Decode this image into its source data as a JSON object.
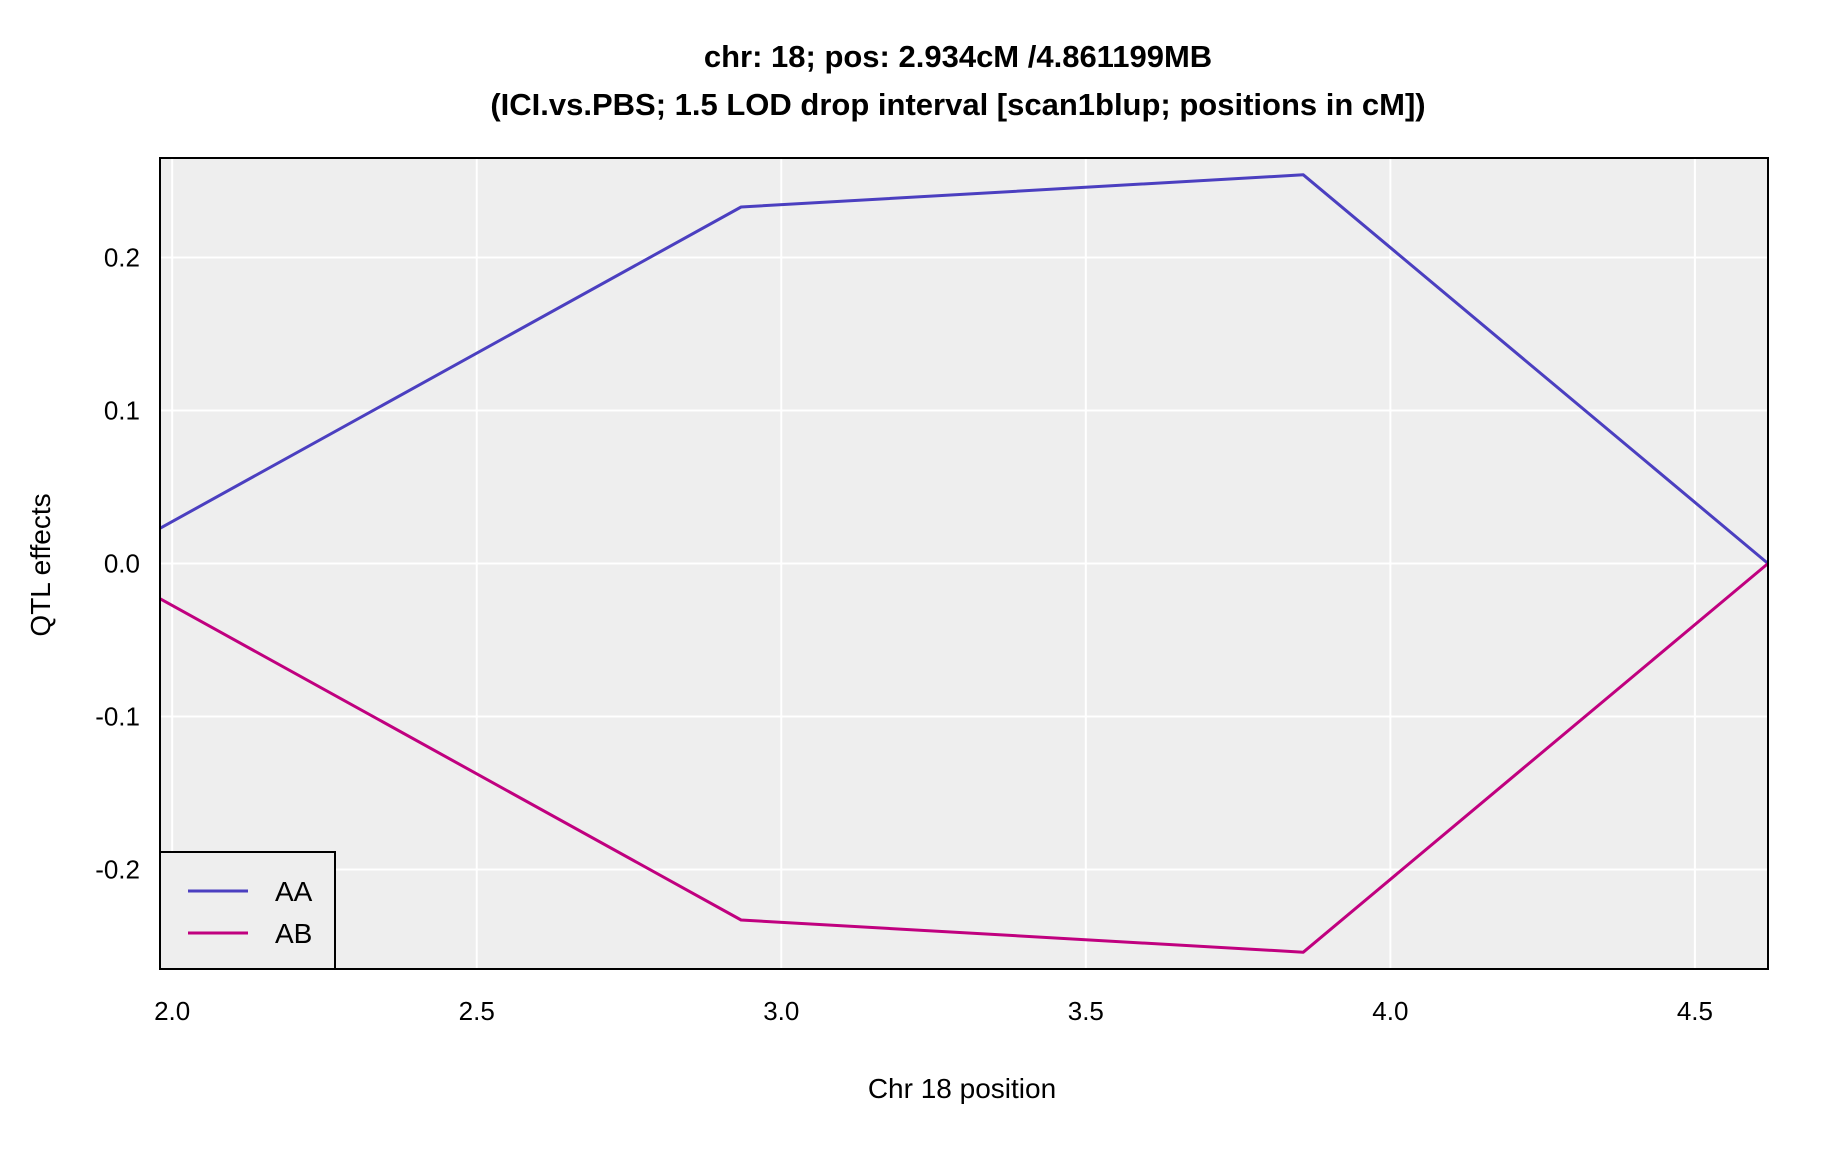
{
  "chart_data": {
    "type": "line",
    "title": "chr: 18; pos: 2.934cM /4.861199MB",
    "subtitle": "(ICI.vs.PBS; 1.5 LOD drop interval [scan1blup; positions in cM])",
    "xlabel": "Chr 18 position",
    "ylabel": "QTL effects",
    "xlim": [
      1.98,
      4.62
    ],
    "ylim": [
      -0.265,
      0.265
    ],
    "xticks": [
      2.0,
      2.5,
      3.0,
      3.5,
      4.0,
      4.5
    ],
    "xtick_labels": [
      "2.0",
      "2.5",
      "3.0",
      "3.5",
      "4.0",
      "4.5"
    ],
    "yticks": [
      -0.2,
      -0.1,
      0.0,
      0.1,
      0.2
    ],
    "ytick_labels": [
      "-0.2",
      "-0.1",
      "0.0",
      "0.1",
      "0.2"
    ],
    "grid": true,
    "legend_position": "bottom-left",
    "background": "#eeeeee",
    "series": [
      {
        "name": "AA",
        "color": "#4b3fc0",
        "x": [
          1.98,
          2.934,
          3.857,
          4.62
        ],
        "y": [
          0.023,
          0.233,
          0.254,
          0.0
        ]
      },
      {
        "name": "AB",
        "color": "#c0007f",
        "x": [
          1.98,
          2.934,
          3.857,
          4.62
        ],
        "y": [
          -0.023,
          -0.233,
          -0.254,
          0.0
        ]
      }
    ]
  }
}
